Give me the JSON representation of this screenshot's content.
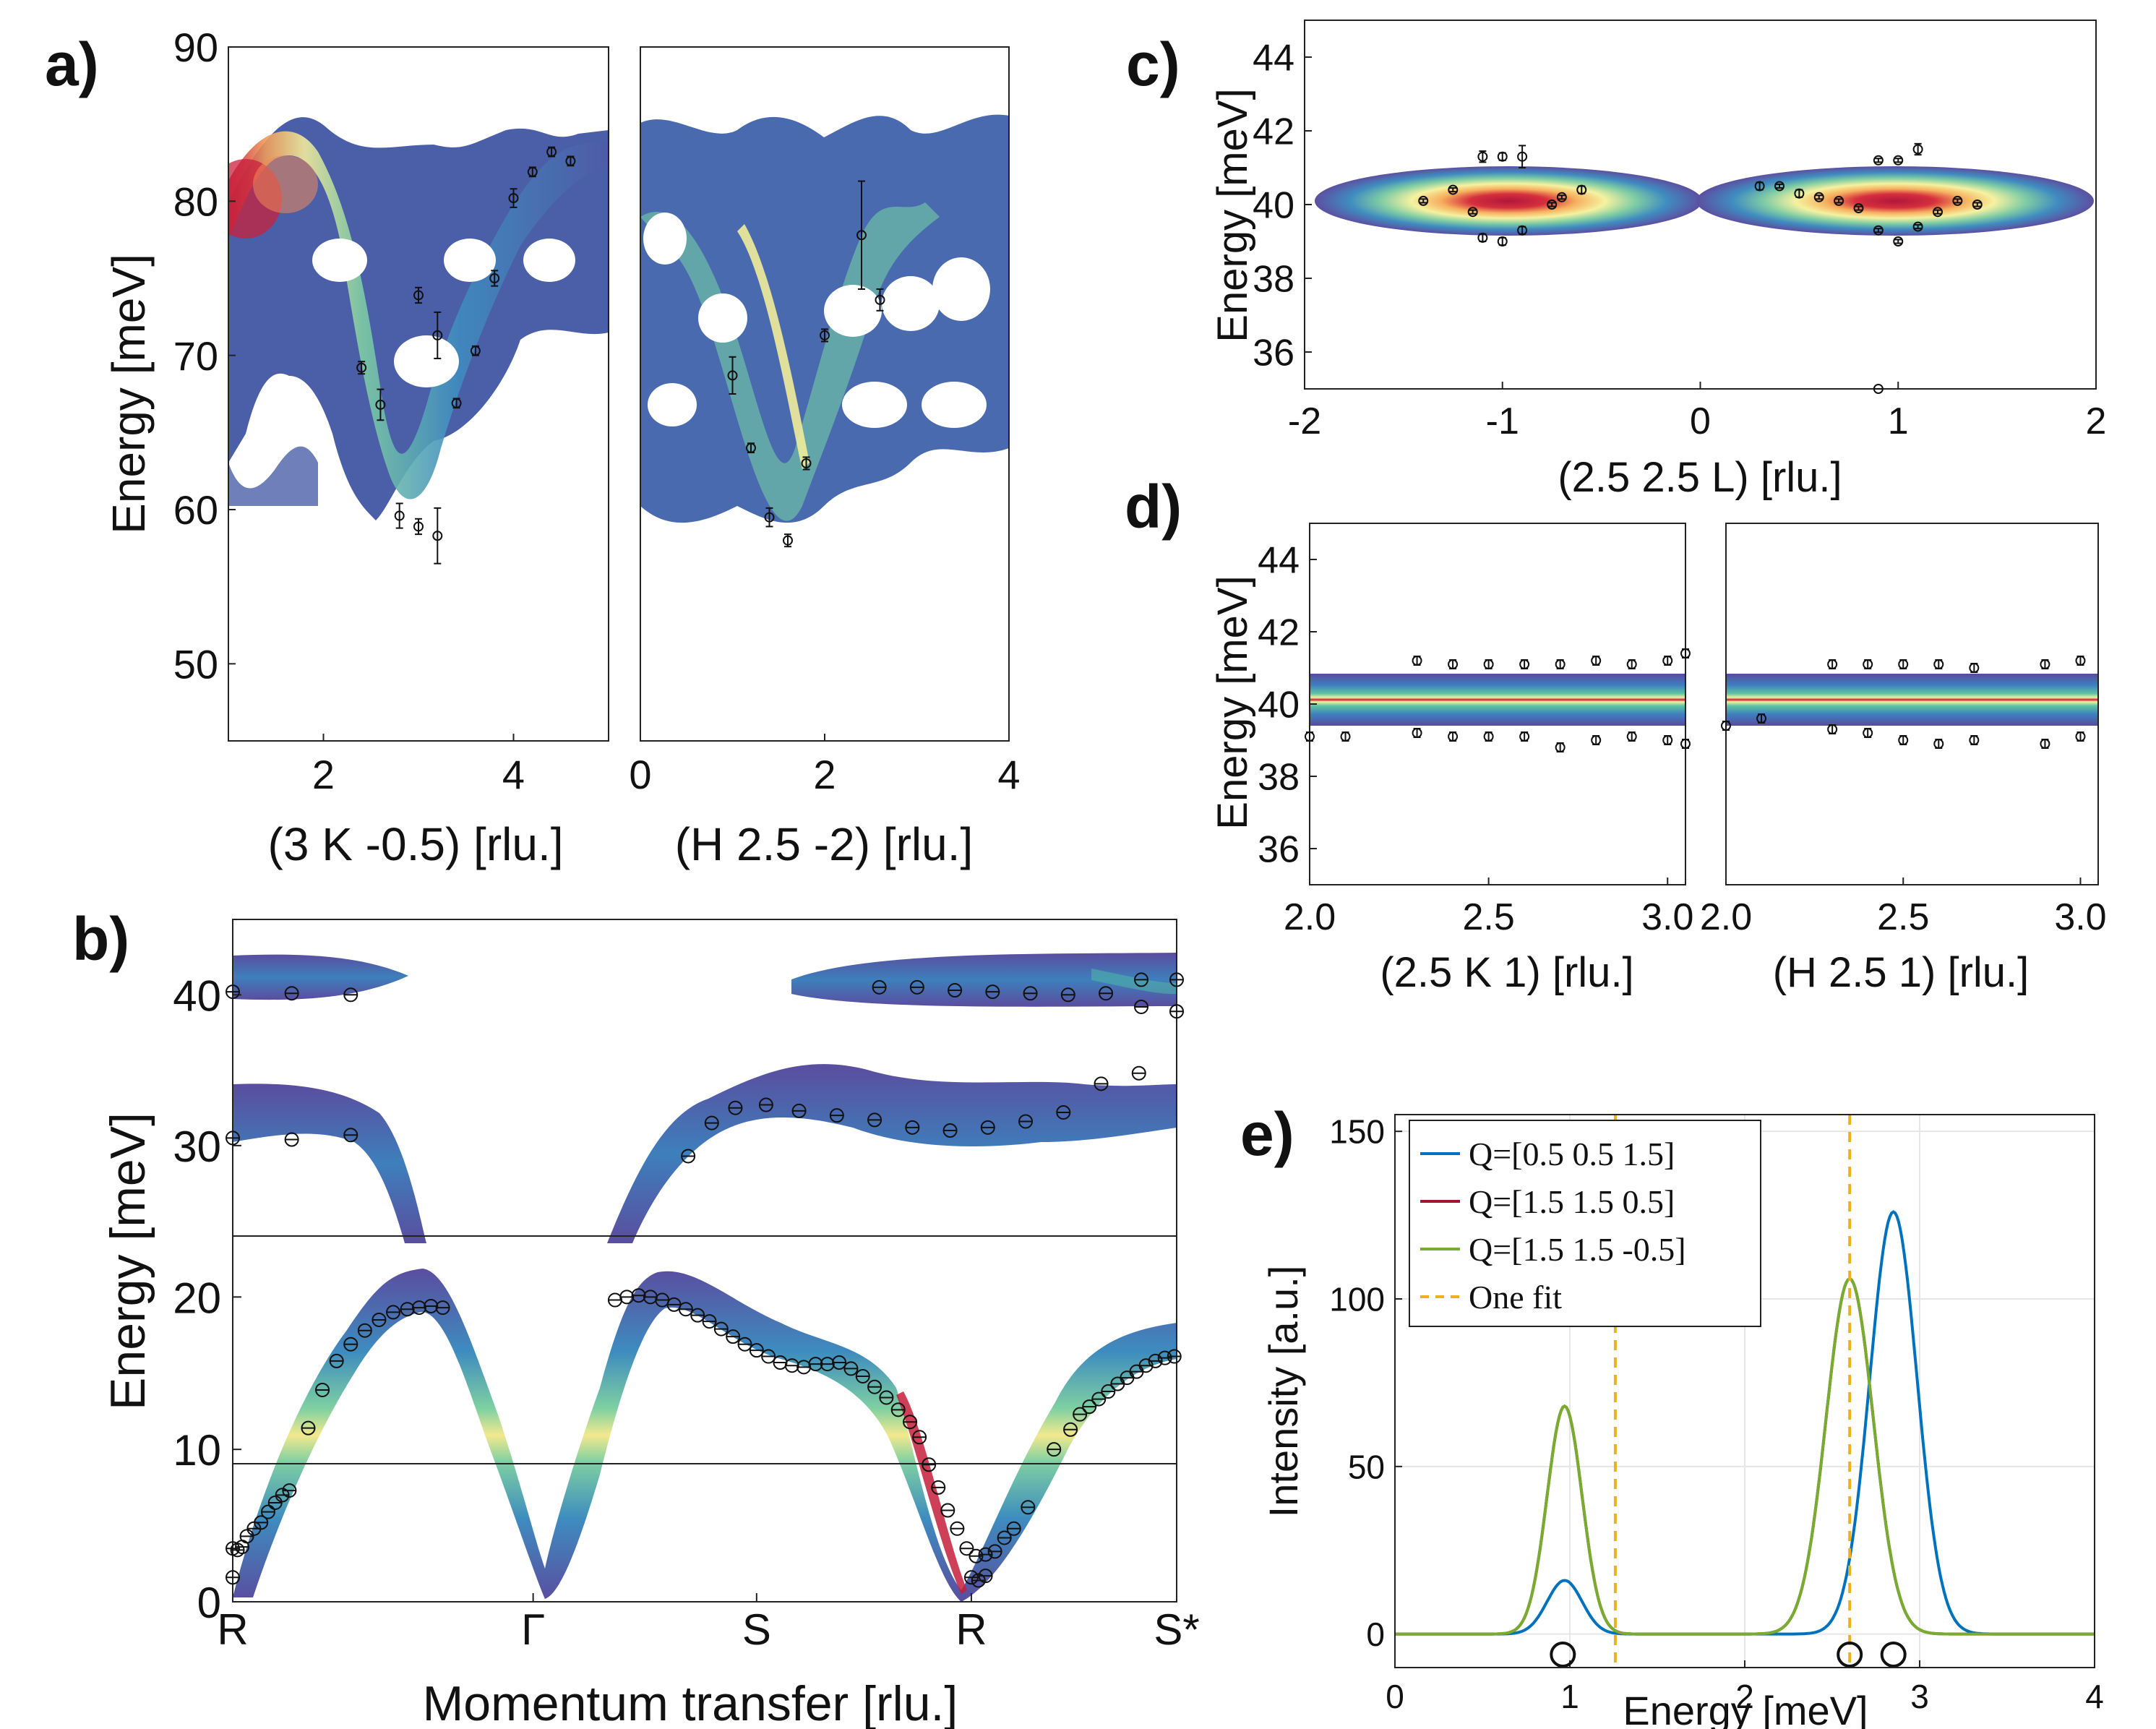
{
  "chart_data": [
    {
      "id": "a1",
      "panel_label": "a)",
      "type": "heatmap+errorbar",
      "xlabel": "(3 K -0.5) [rlu.]",
      "ylabel": "Energy [meV]",
      "xlim": [
        1.0,
        5.0
      ],
      "ylim": [
        45,
        90
      ],
      "xticks": [
        2,
        4
      ],
      "yticks": [
        50,
        60,
        70,
        80,
        90
      ],
      "points": [
        {
          "x": 2.4,
          "y": 69.2,
          "err": 0.4
        },
        {
          "x": 2.6,
          "y": 66.8,
          "err": 1.0
        },
        {
          "x": 2.8,
          "y": 59.6,
          "err": 0.8
        },
        {
          "x": 3.0,
          "y": 58.9,
          "err": 0.5
        },
        {
          "x": 3.0,
          "y": 73.9,
          "err": 0.5
        },
        {
          "x": 3.2,
          "y": 71.3,
          "err": 1.5
        },
        {
          "x": 3.2,
          "y": 58.3,
          "err": 1.8
        },
        {
          "x": 3.4,
          "y": 66.9,
          "err": 0.3
        },
        {
          "x": 3.6,
          "y": 70.3,
          "err": 0.3
        },
        {
          "x": 3.8,
          "y": 75.0,
          "err": 0.5
        },
        {
          "x": 4.0,
          "y": 80.2,
          "err": 0.6
        },
        {
          "x": 4.2,
          "y": 81.9,
          "err": 0.3
        },
        {
          "x": 4.4,
          "y": 83.2,
          "err": 0.3
        },
        {
          "x": 4.6,
          "y": 82.6,
          "err": 0.3
        }
      ]
    },
    {
      "id": "a2",
      "type": "heatmap+errorbar",
      "xlabel": "(H 2.5 -2) [rlu.]",
      "ylabel": "",
      "xlim": [
        0,
        4
      ],
      "ylim": [
        45,
        90
      ],
      "xticks": [
        0,
        2,
        4
      ],
      "yticks": [],
      "points": [
        {
          "x": 1.0,
          "y": 68.7,
          "err": 1.2
        },
        {
          "x": 1.2,
          "y": 64.0,
          "err": 0.3
        },
        {
          "x": 1.4,
          "y": 59.5,
          "err": 0.6
        },
        {
          "x": 1.6,
          "y": 58.0,
          "err": 0.4
        },
        {
          "x": 1.8,
          "y": 63.0,
          "err": 0.4
        },
        {
          "x": 2.0,
          "y": 71.3,
          "err": 0.4
        },
        {
          "x": 2.4,
          "y": 77.8,
          "err": 3.5
        },
        {
          "x": 2.6,
          "y": 73.6,
          "err": 0.7
        }
      ]
    },
    {
      "id": "b",
      "panel_label": "b)",
      "type": "heatmap+errorbar",
      "xlabel": "Momentum transfer [rlu.]",
      "ylabel": "Energy [meV]",
      "xlim": [
        0,
        4
      ],
      "ylim": [
        0,
        45
      ],
      "y_break_at": 24,
      "xtick_labels": [
        "R",
        "Γ",
        "S",
        "R",
        "S*"
      ],
      "xtick_positions": [
        0,
        1.273,
        2.22,
        3.13,
        4.0
      ],
      "yticks": [
        0,
        10,
        20,
        30,
        40
      ],
      "points": [
        {
          "x": 0.0,
          "y": 40.2
        },
        {
          "x": 0.25,
          "y": 40.1
        },
        {
          "x": 0.5,
          "y": 40.0
        },
        {
          "x": 2.74,
          "y": 40.5
        },
        {
          "x": 2.9,
          "y": 40.5
        },
        {
          "x": 3.06,
          "y": 40.3
        },
        {
          "x": 3.22,
          "y": 40.2
        },
        {
          "x": 3.38,
          "y": 40.1
        },
        {
          "x": 3.54,
          "y": 40.0
        },
        {
          "x": 3.7,
          "y": 40.1
        },
        {
          "x": 3.85,
          "y": 41.0
        },
        {
          "x": 4.0,
          "y": 41.0
        },
        {
          "x": 3.85,
          "y": 39.2
        },
        {
          "x": 4.0,
          "y": 38.9
        },
        {
          "x": 0.0,
          "y": 30.5
        },
        {
          "x": 0.25,
          "y": 30.4
        },
        {
          "x": 0.5,
          "y": 30.7
        },
        {
          "x": 1.93,
          "y": 29.3
        },
        {
          "x": 2.03,
          "y": 31.5
        },
        {
          "x": 2.13,
          "y": 32.5
        },
        {
          "x": 2.26,
          "y": 32.7
        },
        {
          "x": 2.4,
          "y": 32.3
        },
        {
          "x": 2.56,
          "y": 32.0
        },
        {
          "x": 2.72,
          "y": 31.7
        },
        {
          "x": 2.88,
          "y": 31.2
        },
        {
          "x": 3.04,
          "y": 31.0
        },
        {
          "x": 3.2,
          "y": 31.2
        },
        {
          "x": 3.36,
          "y": 31.6
        },
        {
          "x": 3.52,
          "y": 32.2
        },
        {
          "x": 3.68,
          "y": 34.1
        },
        {
          "x": 3.84,
          "y": 34.8
        },
        {
          "x": 0.0,
          "y": 1.6
        },
        {
          "x": 0.0,
          "y": 3.5
        },
        {
          "x": 0.02,
          "y": 3.4
        },
        {
          "x": 0.04,
          "y": 3.6
        },
        {
          "x": 0.06,
          "y": 4.3
        },
        {
          "x": 0.09,
          "y": 4.8
        },
        {
          "x": 0.12,
          "y": 5.2
        },
        {
          "x": 0.15,
          "y": 5.9
        },
        {
          "x": 0.18,
          "y": 6.5
        },
        {
          "x": 0.21,
          "y": 7.0
        },
        {
          "x": 0.24,
          "y": 7.3
        },
        {
          "x": 0.32,
          "y": 11.4
        },
        {
          "x": 0.38,
          "y": 13.9
        },
        {
          "x": 0.44,
          "y": 15.8
        },
        {
          "x": 0.5,
          "y": 16.9
        },
        {
          "x": 0.56,
          "y": 17.8
        },
        {
          "x": 0.62,
          "y": 18.5
        },
        {
          "x": 0.68,
          "y": 19.0
        },
        {
          "x": 0.74,
          "y": 19.2
        },
        {
          "x": 0.79,
          "y": 19.3
        },
        {
          "x": 0.84,
          "y": 19.4
        },
        {
          "x": 0.89,
          "y": 19.3
        },
        {
          "x": 1.62,
          "y": 19.8
        },
        {
          "x": 1.67,
          "y": 20.0
        },
        {
          "x": 1.72,
          "y": 20.1
        },
        {
          "x": 1.77,
          "y": 20.0
        },
        {
          "x": 1.82,
          "y": 19.8
        },
        {
          "x": 1.87,
          "y": 19.5
        },
        {
          "x": 1.92,
          "y": 19.2
        },
        {
          "x": 1.97,
          "y": 18.8
        },
        {
          "x": 2.02,
          "y": 18.4
        },
        {
          "x": 2.07,
          "y": 17.9
        },
        {
          "x": 2.12,
          "y": 17.4
        },
        {
          "x": 2.17,
          "y": 16.9
        },
        {
          "x": 2.22,
          "y": 16.5
        },
        {
          "x": 2.27,
          "y": 16.1
        },
        {
          "x": 2.32,
          "y": 15.7
        },
        {
          "x": 2.37,
          "y": 15.5
        },
        {
          "x": 2.42,
          "y": 15.4
        },
        {
          "x": 2.47,
          "y": 15.6
        },
        {
          "x": 2.52,
          "y": 15.6
        },
        {
          "x": 2.57,
          "y": 15.7
        },
        {
          "x": 2.62,
          "y": 15.3
        },
        {
          "x": 2.67,
          "y": 14.8
        },
        {
          "x": 2.72,
          "y": 14.1
        },
        {
          "x": 2.77,
          "y": 13.4
        },
        {
          "x": 2.82,
          "y": 12.6
        },
        {
          "x": 2.87,
          "y": 11.8
        },
        {
          "x": 2.91,
          "y": 10.8
        },
        {
          "x": 2.95,
          "y": 9.0
        },
        {
          "x": 2.99,
          "y": 7.5
        },
        {
          "x": 3.03,
          "y": 6.0
        },
        {
          "x": 3.07,
          "y": 4.8
        },
        {
          "x": 3.11,
          "y": 3.5
        },
        {
          "x": 3.15,
          "y": 3.0
        },
        {
          "x": 3.19,
          "y": 3.1
        },
        {
          "x": 3.23,
          "y": 3.3
        },
        {
          "x": 3.13,
          "y": 1.6
        },
        {
          "x": 3.16,
          "y": 1.4
        },
        {
          "x": 3.19,
          "y": 1.7
        },
        {
          "x": 3.27,
          "y": 4.2
        },
        {
          "x": 3.31,
          "y": 4.8
        },
        {
          "x": 3.37,
          "y": 6.2
        },
        {
          "x": 3.48,
          "y": 10.0
        },
        {
          "x": 3.55,
          "y": 11.3
        },
        {
          "x": 3.59,
          "y": 12.3
        },
        {
          "x": 3.63,
          "y": 12.8
        },
        {
          "x": 3.67,
          "y": 13.3
        },
        {
          "x": 3.71,
          "y": 13.8
        },
        {
          "x": 3.75,
          "y": 14.3
        },
        {
          "x": 3.79,
          "y": 14.7
        },
        {
          "x": 3.83,
          "y": 15.1
        },
        {
          "x": 3.87,
          "y": 15.5
        },
        {
          "x": 3.91,
          "y": 15.8
        },
        {
          "x": 3.95,
          "y": 16.0
        },
        {
          "x": 3.99,
          "y": 16.1
        }
      ]
    },
    {
      "id": "c",
      "panel_label": "c)",
      "type": "heatmap+errorbar",
      "xlabel": "(2.5 2.5 L) [rlu.]",
      "ylabel": "Energy [meV]",
      "xlim": [
        -2,
        2
      ],
      "ylim": [
        35,
        45
      ],
      "xticks": [
        -2,
        -1,
        0,
        1,
        2
      ],
      "xtick_labels": [
        "-2",
        "-1",
        "0",
        "1",
        "2"
      ],
      "yticks": [
        36,
        38,
        40,
        42,
        44
      ],
      "points": [
        {
          "x": -1.4,
          "y": 40.1,
          "err": 0.05
        },
        {
          "x": -1.25,
          "y": 40.4,
          "err": 0.05
        },
        {
          "x": -1.1,
          "y": 41.3,
          "err": 0.15
        },
        {
          "x": -1.0,
          "y": 41.3,
          "err": 0.1
        },
        {
          "x": -0.9,
          "y": 41.3,
          "err": 0.3
        },
        {
          "x": -1.15,
          "y": 39.8,
          "err": 0.05
        },
        {
          "x": -1.1,
          "y": 39.1,
          "err": 0.1
        },
        {
          "x": -1.0,
          "y": 39.0,
          "err": 0.1
        },
        {
          "x": -0.9,
          "y": 39.3,
          "err": 0.1
        },
        {
          "x": -0.75,
          "y": 40.0,
          "err": 0.05
        },
        {
          "x": -0.7,
          "y": 40.2,
          "err": 0.05
        },
        {
          "x": -0.6,
          "y": 40.4,
          "err": 0.1
        },
        {
          "x": 0.3,
          "y": 40.5,
          "err": 0.1
        },
        {
          "x": 0.4,
          "y": 40.5,
          "err": 0.05
        },
        {
          "x": 0.5,
          "y": 40.3,
          "err": 0.1
        },
        {
          "x": 0.6,
          "y": 40.2,
          "err": 0.05
        },
        {
          "x": 0.7,
          "y": 40.1,
          "err": 0.05
        },
        {
          "x": 0.8,
          "y": 39.9,
          "err": 0.05
        },
        {
          "x": 0.9,
          "y": 41.2,
          "err": 0.05
        },
        {
          "x": 1.0,
          "y": 41.2,
          "err": 0.05
        },
        {
          "x": 1.1,
          "y": 41.5,
          "err": 0.15
        },
        {
          "x": 0.9,
          "y": 39.3,
          "err": 0.05
        },
        {
          "x": 1.0,
          "y": 39.0,
          "err": 0.05
        },
        {
          "x": 1.1,
          "y": 39.4,
          "err": 0.05
        },
        {
          "x": 1.2,
          "y": 39.8,
          "err": 0.05
        },
        {
          "x": 1.3,
          "y": 40.1,
          "err": 0.05
        },
        {
          "x": 1.4,
          "y": 40.0,
          "err": 0.05
        },
        {
          "x": 0.9,
          "y": 35.0,
          "err": 0.0
        }
      ]
    },
    {
      "id": "d1",
      "panel_label": "d)",
      "type": "heatmap+errorbar",
      "xlabel": "(2.5 K 1) [rlu.]",
      "ylabel": "Energy [meV]",
      "xlim": [
        2.0,
        3.05
      ],
      "ylim": [
        35,
        45
      ],
      "xticks": [
        2.0,
        2.5,
        3.0
      ],
      "xtick_labels": [
        "2.0",
        "2.5",
        "3.0"
      ],
      "yticks": [
        36,
        38,
        40,
        42,
        44
      ],
      "points": [
        {
          "x": 2.0,
          "y": 39.1
        },
        {
          "x": 2.1,
          "y": 39.1
        },
        {
          "x": 2.3,
          "y": 41.2
        },
        {
          "x": 2.4,
          "y": 41.1
        },
        {
          "x": 2.5,
          "y": 41.1
        },
        {
          "x": 2.6,
          "y": 41.1
        },
        {
          "x": 2.7,
          "y": 41.1
        },
        {
          "x": 2.8,
          "y": 41.2
        },
        {
          "x": 2.9,
          "y": 41.1
        },
        {
          "x": 3.0,
          "y": 41.2
        },
        {
          "x": 3.05,
          "y": 41.4
        },
        {
          "x": 2.3,
          "y": 39.2
        },
        {
          "x": 2.4,
          "y": 39.1
        },
        {
          "x": 2.5,
          "y": 39.1
        },
        {
          "x": 2.6,
          "y": 39.1
        },
        {
          "x": 2.7,
          "y": 38.8
        },
        {
          "x": 2.8,
          "y": 39.0
        },
        {
          "x": 2.9,
          "y": 39.1
        },
        {
          "x": 3.0,
          "y": 39.0
        },
        {
          "x": 3.05,
          "y": 38.9
        }
      ]
    },
    {
      "id": "d2",
      "type": "heatmap+errorbar",
      "xlabel": "(H 2.5 1) [rlu.]",
      "ylabel": "",
      "xlim": [
        2.0,
        3.05
      ],
      "ylim": [
        35,
        45
      ],
      "xticks": [
        2.0,
        2.5,
        3.0
      ],
      "xtick_labels": [
        "2.0",
        "2.5",
        "3.0"
      ],
      "yticks": [],
      "points": [
        {
          "x": 2.0,
          "y": 39.4
        },
        {
          "x": 2.1,
          "y": 39.6
        },
        {
          "x": 2.3,
          "y": 41.1
        },
        {
          "x": 2.4,
          "y": 41.1
        },
        {
          "x": 2.5,
          "y": 41.1
        },
        {
          "x": 2.6,
          "y": 41.1
        },
        {
          "x": 2.7,
          "y": 41.0
        },
        {
          "x": 2.9,
          "y": 41.1
        },
        {
          "x": 3.0,
          "y": 41.2
        },
        {
          "x": 2.3,
          "y": 39.3
        },
        {
          "x": 2.4,
          "y": 39.2
        },
        {
          "x": 2.5,
          "y": 39.0
        },
        {
          "x": 2.6,
          "y": 38.9
        },
        {
          "x": 2.7,
          "y": 39.0
        },
        {
          "x": 2.9,
          "y": 38.9
        },
        {
          "x": 3.0,
          "y": 39.1
        }
      ]
    },
    {
      "id": "e",
      "panel_label": "e)",
      "type": "line",
      "xlabel": "Energy [meV]",
      "ylabel": "Intensity [a.u.]",
      "xlim": [
        0,
        4
      ],
      "ylim": [
        -10,
        155
      ],
      "xticks": [
        0,
        1,
        2,
        3,
        4
      ],
      "yticks": [
        0,
        50,
        100,
        150
      ],
      "grid": true,
      "legend_location": "top-left",
      "series": [
        {
          "name": "Q=[0.5 0.5 1.5]",
          "color": "#0072BD",
          "peaks": [
            {
              "center": 0.97,
              "height": 16,
              "width": 0.1
            },
            {
              "center": 2.85,
              "height": 126,
              "width": 0.135
            }
          ]
        },
        {
          "name": "Q=[1.5 1.5 0.5]",
          "color": "#A2142F",
          "peaks": [
            {
              "center": 0.97,
              "height": 68,
              "width": 0.1
            },
            {
              "center": 2.6,
              "height": 106,
              "width": 0.135
            }
          ]
        },
        {
          "name": "Q=[1.5 1.5 -0.5]",
          "color": "#77AC30",
          "peaks": [
            {
              "center": 0.97,
              "height": 68,
              "width": 0.1
            },
            {
              "center": 2.6,
              "height": 106,
              "width": 0.135
            }
          ]
        }
      ],
      "vlines": {
        "name": "One fit",
        "color": "#EDB120",
        "x": [
          1.26,
          2.6
        ]
      },
      "markers": [
        0.96,
        2.6,
        2.85
      ]
    }
  ]
}
